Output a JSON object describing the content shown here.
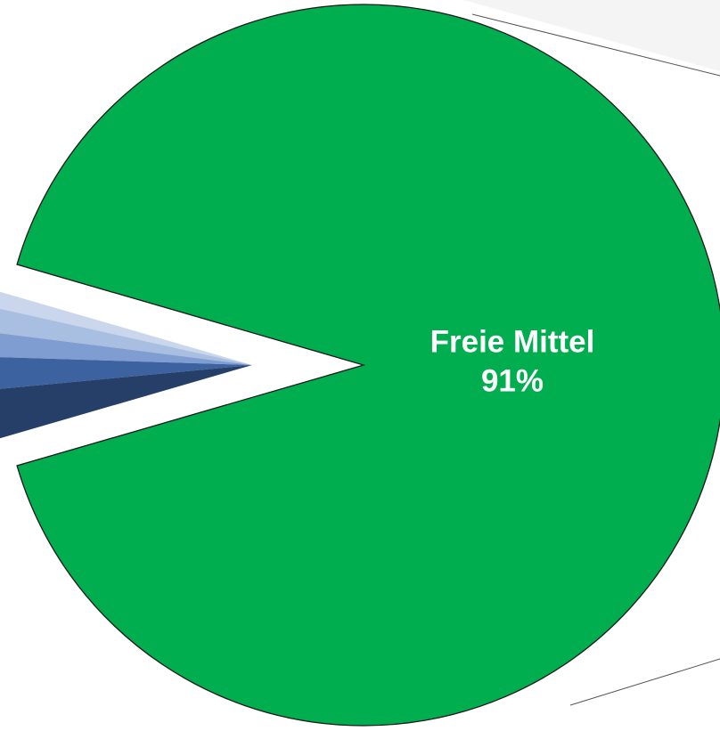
{
  "chart_data": {
    "type": "pie",
    "categories": [
      "Freie Mittel",
      null,
      null,
      null,
      null,
      null
    ],
    "values": [
      91,
      1,
      1.5,
      1.5,
      2,
      3
    ],
    "value_labels": [
      "91%",
      null,
      null,
      null,
      null,
      null
    ],
    "colors": [
      "#00ad4f",
      "#c9d6ec",
      "#a9bfe2",
      "#7f9dd0",
      "#3c62a0",
      "#263f69"
    ]
  }
}
